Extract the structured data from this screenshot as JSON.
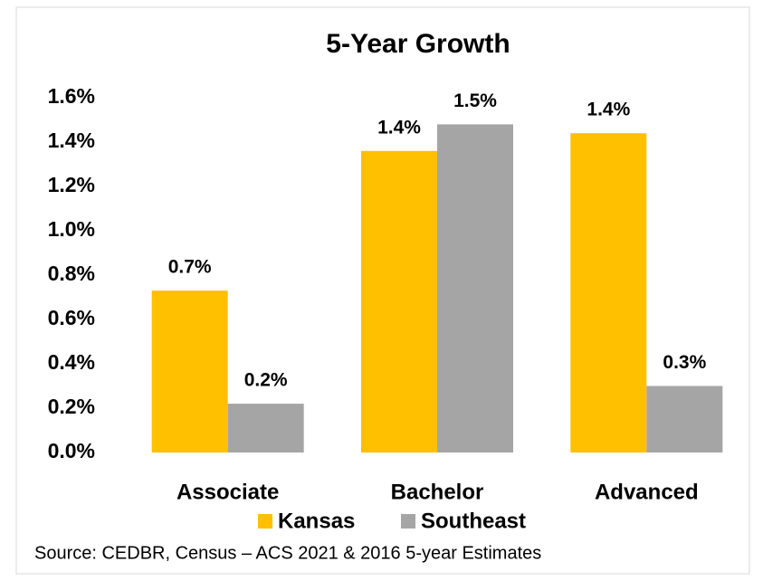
{
  "chart_data": {
    "type": "bar",
    "title": "5-Year Growth",
    "categories": [
      "Associate",
      "Bachelor",
      "Advanced"
    ],
    "series": [
      {
        "name": "Kansas",
        "color": "#ffc000",
        "values": [
          0.73,
          1.36,
          1.44
        ],
        "value_labels": [
          "0.7%",
          "1.4%",
          "1.4%"
        ]
      },
      {
        "name": "Southeast",
        "color": "#a5a5a5",
        "values": [
          0.22,
          1.48,
          0.3
        ],
        "value_labels": [
          "0.2%",
          "1.5%",
          "0.3%"
        ]
      }
    ],
    "ylim": [
      0,
      1.6
    ],
    "yticks": [
      {
        "value": 0,
        "label": "0.0%"
      },
      {
        "value": 0.2,
        "label": "0.2%"
      },
      {
        "value": 0.4,
        "label": "0.4%"
      },
      {
        "value": 0.6,
        "label": "0.6%"
      },
      {
        "value": 0.8,
        "label": "0.8%"
      },
      {
        "value": 1.0,
        "label": "1.0%"
      },
      {
        "value": 1.2,
        "label": "1.2%"
      },
      {
        "value": 1.4,
        "label": "1.4%"
      },
      {
        "value": 1.6,
        "label": "1.6%"
      }
    ],
    "grid": false,
    "legend": "bottom",
    "source": "Source: CEDBR, Census – ACS 2021 & 2016 5-year Estimates"
  }
}
